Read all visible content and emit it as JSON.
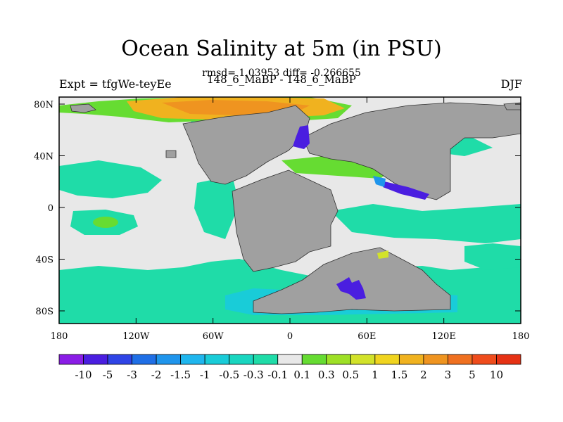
{
  "header": {
    "title": "Ocean Salinity at 5m (in PSU)",
    "subtitle": "rmsd= 1.03953 diff= -0.266655",
    "expt": "Expt = tfgWe-teyEe",
    "case": "148_6_MaBP - 148_6_MaBP",
    "season": "DJF"
  },
  "axes": {
    "lon_ticks": [
      "180",
      "120W",
      "60W",
      "0",
      "60E",
      "120E",
      "180"
    ],
    "lat_ticks": [
      "80N",
      "40N",
      "0",
      "40S",
      "80S"
    ]
  },
  "colorbar": {
    "labels": [
      "-10",
      "-5",
      "-3",
      "-2",
      "-1.5",
      "-1",
      "-0.5",
      "-0.3",
      "-0.1",
      "0.1",
      "0.3",
      "0.5",
      "1",
      "1.5",
      "2",
      "3",
      "5",
      "10"
    ],
    "colors": [
      "#8a1de6",
      "#4a1ee0",
      "#2f44e6",
      "#1f6fe6",
      "#1f95ec",
      "#1fb6ee",
      "#19ccd8",
      "#19d6c0",
      "#1fdca8",
      "#e8e8e8",
      "#66dc32",
      "#9ee026",
      "#d2e22a",
      "#f0d41f",
      "#f0b21f",
      "#ef9420",
      "#ef7020",
      "#ef4c1c",
      "#e63214"
    ]
  },
  "colors": {
    "land": "#a0a0a0",
    "ocean": "#e8e8e8",
    "teal": "#1fdca8",
    "cyan": "#19ccd8",
    "blue": "#1f95ec",
    "green": "#66dc32",
    "yellow": "#d2e22a",
    "orange": "#f0b21f",
    "purple": "#4a1ee0"
  }
}
